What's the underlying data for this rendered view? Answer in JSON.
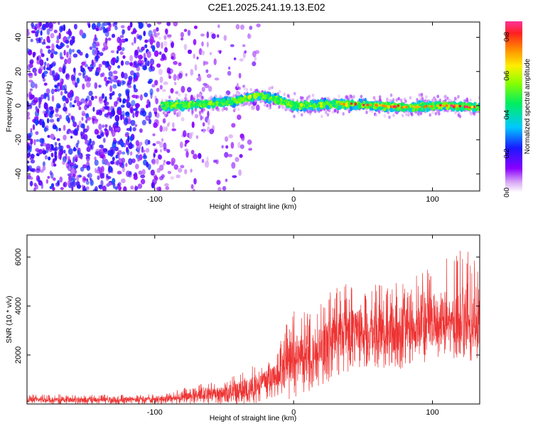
{
  "title": "C2E1.2025.241.19.13.E02",
  "chart_data": [
    {
      "type": "heatmap",
      "name": "spectrogram",
      "xlabel": "Height of straight line (km)",
      "ylabel": "Frequency (Hz)",
      "xlim": [
        -192,
        134
      ],
      "ylim": [
        -50,
        49
      ],
      "xticks": [
        -100,
        0,
        100
      ],
      "yticks": [
        -40,
        -20,
        0,
        20,
        40
      ],
      "colorbar": {
        "label": "Normalized spectral amplitude",
        "range": [
          0.0,
          0.88
        ],
        "ticks": [
          "0.0",
          "0.2",
          "0.4",
          "0.6",
          "0.8"
        ],
        "colormap": "rainbow-white"
      },
      "features": {
        "signal_band_start_km": -95,
        "signal_band_center_hz": [
          [
            -95,
            0
          ],
          [
            -60,
            1
          ],
          [
            -40,
            3
          ],
          [
            -25,
            6
          ],
          [
            -10,
            3
          ],
          [
            0,
            0
          ],
          [
            40,
            1
          ],
          [
            80,
            -1
          ],
          [
            110,
            0
          ],
          [
            134,
            -1
          ]
        ],
        "noise_region_end_km": -35,
        "peak_amplitude": 0.88
      }
    },
    {
      "type": "line",
      "name": "snr",
      "xlabel": "Height of straight line (km)",
      "ylabel": "SNR (10 * v/v)",
      "xlim": [
        -192,
        134
      ],
      "ylim": [
        0,
        6900
      ],
      "xticks": [
        -100,
        0,
        100
      ],
      "yticks": [
        2000,
        4000,
        6000
      ],
      "color": "#ee3333",
      "envelope": {
        "x": [
          -192,
          -150,
          -100,
          -85,
          -70,
          -50,
          -30,
          -15,
          0,
          15,
          30,
          50,
          75,
          100,
          120,
          134
        ],
        "min": [
          0,
          0,
          0,
          0,
          0,
          0,
          0,
          100,
          200,
          600,
          1000,
          1500,
          1400,
          1700,
          1900,
          1400
        ],
        "max": [
          400,
          380,
          400,
          550,
          800,
          950,
          1600,
          2000,
          4000,
          3800,
          4800,
          5200,
          5000,
          5800,
          6500,
          6000
        ],
        "mean": [
          180,
          170,
          190,
          260,
          380,
          480,
          700,
          1100,
          1900,
          2200,
          2800,
          3100,
          3000,
          3300,
          3500,
          3300
        ]
      }
    }
  ]
}
